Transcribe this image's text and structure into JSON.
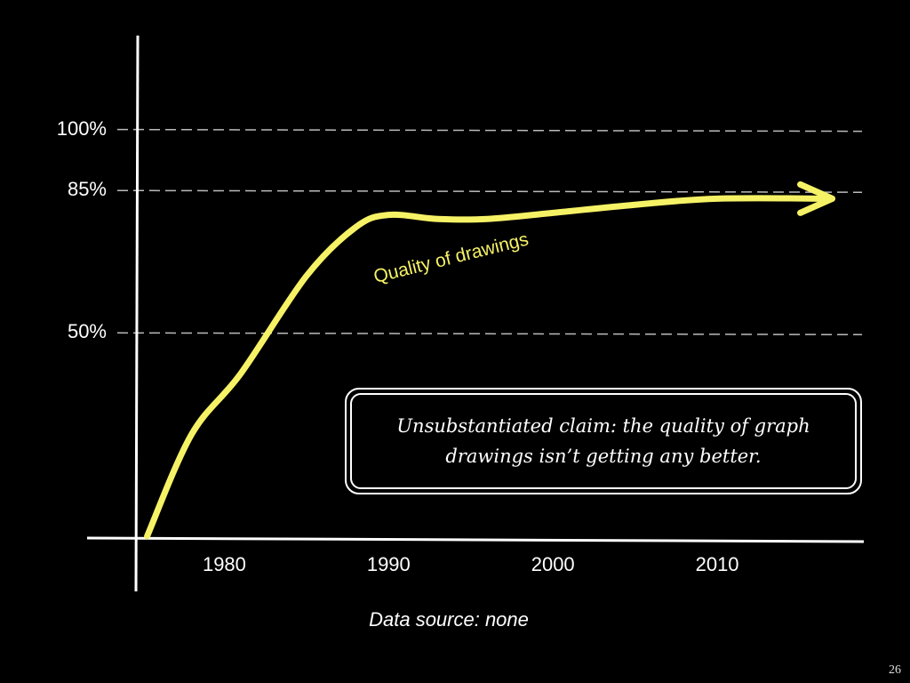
{
  "chart_data": {
    "type": "line",
    "title": "",
    "xlabel": "",
    "ylabel": "",
    "x_ticks": [
      "1980",
      "1990",
      "2000",
      "2010"
    ],
    "y_ticks": [
      "100%",
      "85%",
      "50%"
    ],
    "reference_lines": [
      100,
      85,
      50
    ],
    "xlim": [
      1975,
      2018
    ],
    "ylim": [
      0,
      115
    ],
    "series": [
      {
        "name": "Quality of drawings",
        "color": "#f6f266",
        "x": [
          1975.3,
          1978,
          1981,
          1985,
          1988,
          1990,
          1993,
          1996,
          2000,
          2005,
          2010,
          2017
        ],
        "y": [
          0,
          25,
          40,
          64,
          76,
          79,
          78,
          78,
          79.5,
          81.5,
          83,
          83
        ]
      }
    ],
    "annotation": "Unsubstantiated claim: the quality of graph drawings isn’t getting any better.",
    "source": "Data source: none"
  },
  "page_number": "26"
}
